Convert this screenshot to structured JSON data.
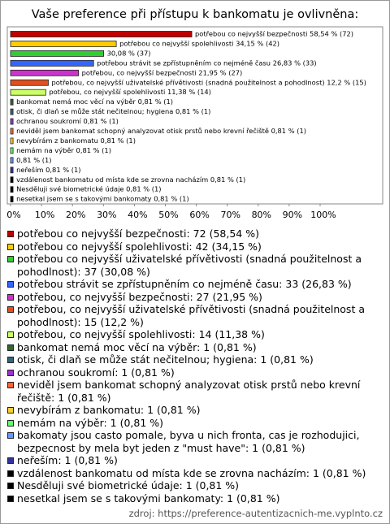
{
  "chart_data": {
    "type": "bar",
    "orientation": "horizontal",
    "title": "Vaše preference při přístupu k bankomatu je ovlivněna:",
    "categories": [
      "potřebou co nejvyšší bezpečnosti: 72 (58,54 %)",
      "potřebou co nejvyšší spolehlivosti: 42 (34,15 %)",
      "potřebou co nejvyšší uživatelské přívětivosti (snadná použitelnost a pohodlnost): 37 (30,08 %)",
      "potřebou strávit se zpřístupněním co nejméně času: 33 (26,83 %)",
      "potřebou, co nejvyšší bezpečnosti: 27 (21,95 %)",
      "potřebou, co nejvyšší uživatelské přívětivosti (snadná použitelnost a pohodlnost): 15 (12,2 %)",
      "potřebou, co nejvyšší spolehlivosti: 14 (11,38 %)",
      "bankomat nemá moc věcí na výběr: 1 (0,81 %)",
      "otisk, či dlaň se může stát nečitelnou; hygiena: 1 (0,81 %)",
      "ochranou soukromí: 1 (0,81 %)",
      "neviděl jsem bankomat schopný analyzovat otisk prstů nebo krevní řečiště: 1 (0,81 %)",
      "nevybírám z bankomatu: 1 (0,81 %)",
      "nemám na výběr: 1 (0,81 %)",
      "bakomaty jsou casto pomale, byva u nich fronta, cas je rozhodujici, bezpecnost by mela byt jeden z \"must have\": 1 (0,81 %)",
      "neřeším: 1 (0,81 %)",
      "vzdálenost bankomatu od místa kde se zrovna nacházím: 1 (0,81 %)",
      "Nesděluji své biometrické údaje: 1 (0,81 %)",
      "nesetkal jsem se s takovými bankomaty: 1 (0,81 %)"
    ],
    "values": [
      58.54,
      34.15,
      30.08,
      26.83,
      21.95,
      12.2,
      11.38,
      0.81,
      0.81,
      0.81,
      0.81,
      0.81,
      0.81,
      0.81,
      0.81,
      0.81,
      0.81,
      0.81
    ],
    "value_labels": [
      "potřebou co nejvyšší bezpečnosti 58,54 % (72)",
      "potřebou co nejvyšší spolehlivosti 34,15 % (42)",
      "30,08 % (37)",
      "potřebou strávit se zpřístupněním co nejméně času 26,83 % (33)",
      "potřebou, co nejvyšší bezpečnosti 21,95 % (27)",
      "potřebou, co nejvyšší uživatelské přívětivosti (snadná použitelnost a pohodlnost) 12,2 % (15)",
      "potřebou, co nejvyšší spolehlivosti 11,38 % (14)",
      "bankomat nemá moc věcí na výběr 0,81 % (1)",
      "otisk, či dlaň se může stát nečitelnou; hygiena 0,81 % (1)",
      "ochranou soukromí 0,81 % (1)",
      "neviděl jsem bankomat schopný analyzovat otisk prstů nebo krevní řečiště 0,81 % (1)",
      "nevybírám z bankomatu 0,81 % (1)",
      "nemám na výběr 0,81 % (1)",
      "0,81 % (1)",
      "neřeším 0,81 % (1)",
      "vzdálenost bankomatu od místa kde se zrovna nacházím 0,81 % (1)",
      "Nesděluji své biometrické údaje 0,81 % (1)",
      "nesetkal jsem se s takovými bankomaty 0,81 % (1)"
    ],
    "colors": [
      "#c00000",
      "#ffcc00",
      "#33cc33",
      "#3366ff",
      "#cc33cc",
      "#e0501e",
      "#ccff66",
      "#336633",
      "#336677",
      "#9933cc",
      "#ff6633",
      "#ffcc33",
      "#66ff66",
      "#6699ff",
      "#333399",
      "#000000",
      "#000000",
      "#000000"
    ],
    "xlim": [
      0,
      100
    ],
    "xticks": [
      {
        "value": 0,
        "label": "0%"
      },
      {
        "value": 10,
        "label": "10%"
      },
      {
        "value": 20,
        "label": "20%"
      },
      {
        "value": 30,
        "label": "30%"
      },
      {
        "value": 40,
        "label": "40%"
      },
      {
        "value": 50,
        "label": "50%"
      },
      {
        "value": 60,
        "label": "60%"
      },
      {
        "value": 70,
        "label": "70%"
      },
      {
        "value": 80,
        "label": "80%"
      },
      {
        "value": 90,
        "label": "90%"
      },
      {
        "value": 100,
        "label": "100%"
      }
    ],
    "source": "zdroj: https://preference-autentizacnich-me.vyplnto.cz"
  }
}
